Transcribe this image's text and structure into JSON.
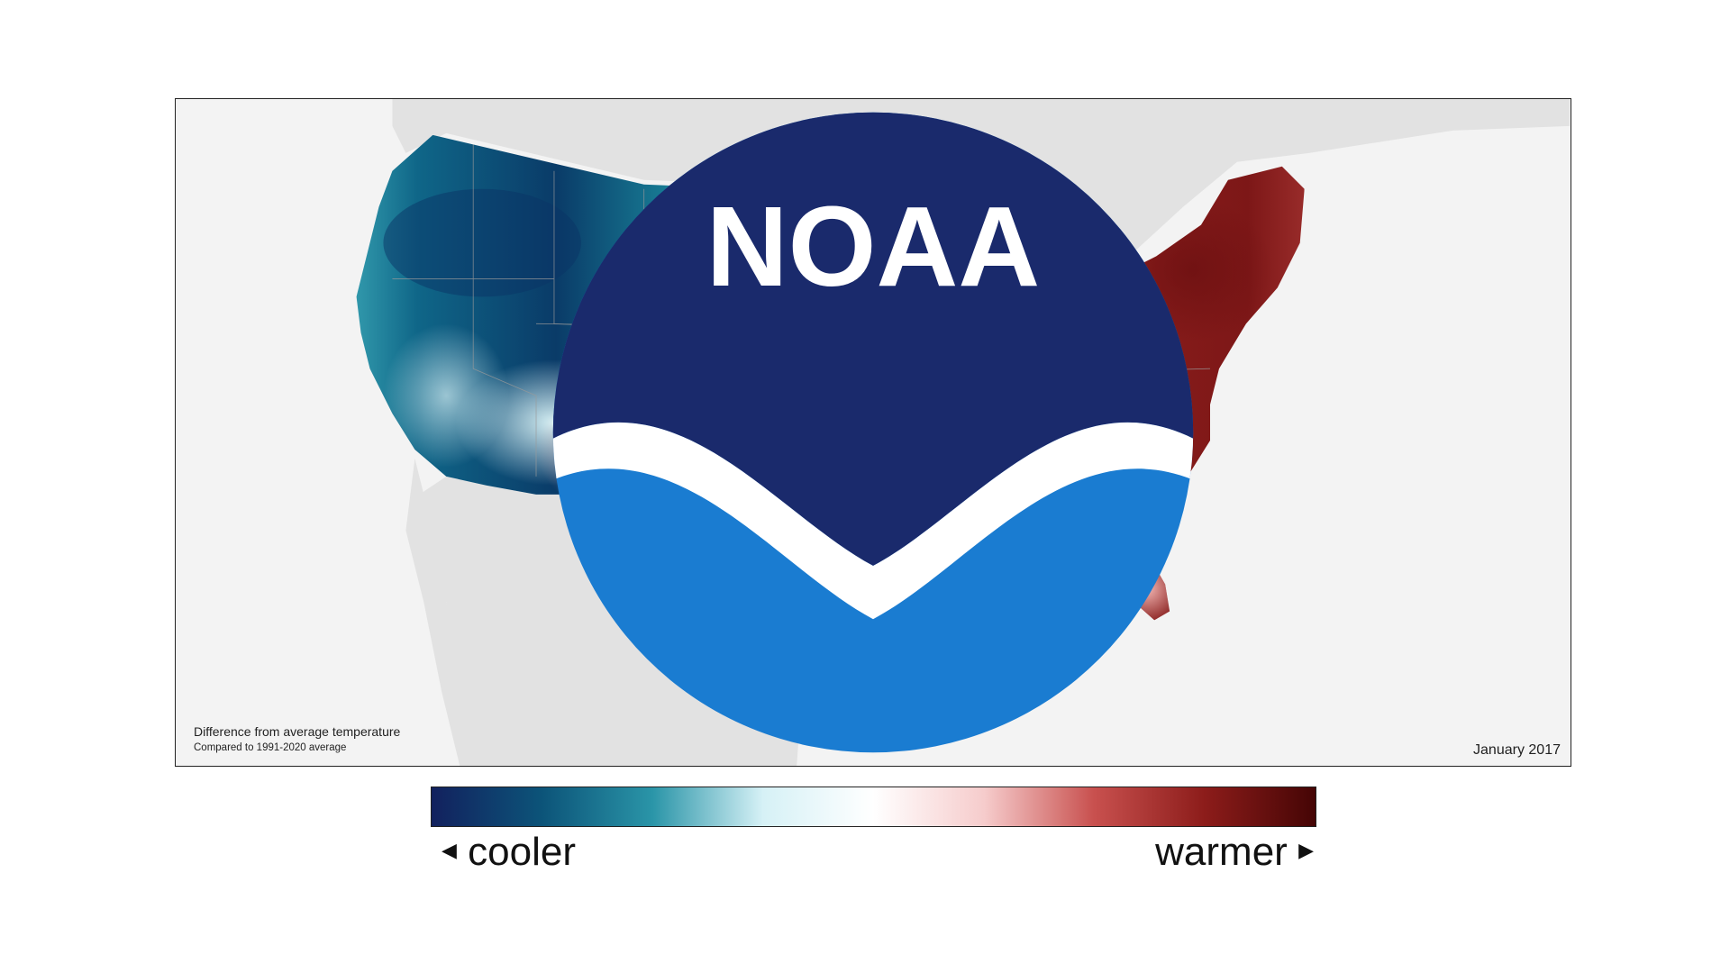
{
  "map": {
    "caption_title": "Difference from average temperature",
    "caption_subtitle": "Compared to 1991-2020 average",
    "date": "January 2017",
    "logo": {
      "text": "NOAA",
      "icon": "noaa-logo-icon",
      "colors": {
        "top": "#1a2a6c",
        "bottom": "#1a7cd1"
      }
    }
  },
  "legend": {
    "cooler_label": "cooler",
    "warmer_label": "warmer",
    "left_arrow": "◀",
    "right_arrow": "▶",
    "gradient_colors": [
      "#12215e",
      "#0c5479",
      "#2a95a8",
      "#d6f1f6",
      "#ffffff",
      "#f6cccc",
      "#c8504e",
      "#8c1c1a",
      "#450505"
    ]
  },
  "colors": {
    "cool_deep": "#0a3b68",
    "cool_mid": "#1d7f95",
    "cool_light": "#bfe8ef",
    "warm_light": "#f0b8b6",
    "warm_mid": "#c14745",
    "warm_deep": "#7a1515",
    "land_other": "#e2e2e2",
    "water": "#f3f3f3"
  }
}
